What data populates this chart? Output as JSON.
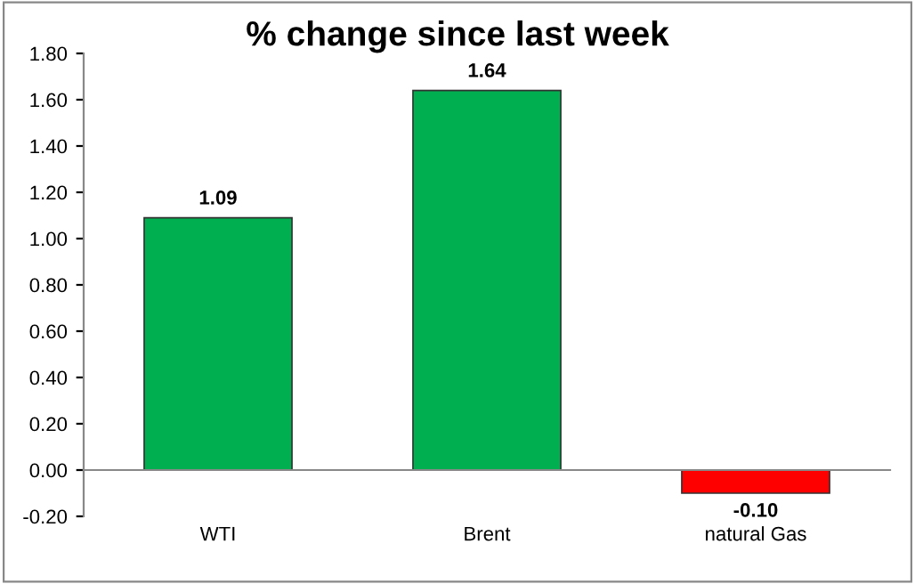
{
  "chart_data": {
    "type": "bar",
    "title": "% change since last week",
    "categories": [
      "WTI",
      "Brent",
      "natural Gas"
    ],
    "values": [
      1.09,
      1.64,
      -0.1
    ],
    "colors": [
      "#00b050",
      "#00b050",
      "#ff0000"
    ],
    "value_labels": [
      "1.09",
      "1.64",
      "-0.10"
    ],
    "ylim": [
      -0.2,
      1.8
    ],
    "yticks": [
      {
        "value": -0.2,
        "label": "-0.20"
      },
      {
        "value": 0,
        "label": "0.00"
      },
      {
        "value": 0.2,
        "label": "0.20"
      },
      {
        "value": 0.4,
        "label": "0.40"
      },
      {
        "value": 0.6,
        "label": "0.60"
      },
      {
        "value": 0.8,
        "label": "0.80"
      },
      {
        "value": 1.0,
        "label": "1.00"
      },
      {
        "value": 1.2,
        "label": "1.20"
      },
      {
        "value": 1.4,
        "label": "1.40"
      },
      {
        "value": 1.6,
        "label": "1.60"
      },
      {
        "value": 1.8,
        "label": "1.80"
      }
    ]
  }
}
